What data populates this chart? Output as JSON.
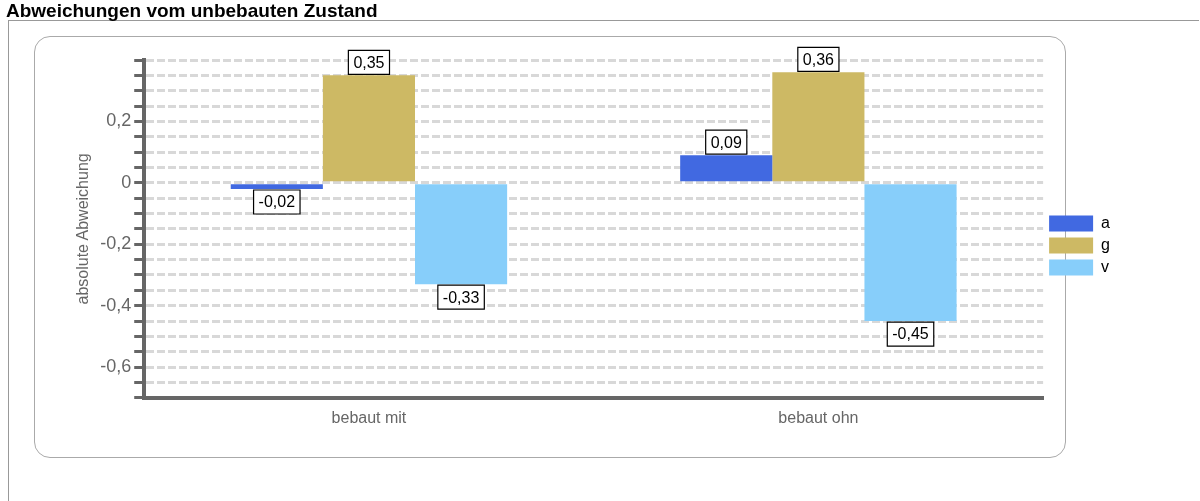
{
  "chart_data": {
    "type": "bar",
    "title": "Abweichungen vom unbebauten Zustand",
    "ylabel": "absolute Abweichung",
    "categories": [
      "bebaut mit",
      "bebaut ohn"
    ],
    "series": [
      {
        "name": "a",
        "color": "#4169e1",
        "values": [
          -0.02,
          0.09
        ],
        "value_labels": [
          "-0,02",
          "0,09"
        ]
      },
      {
        "name": "g",
        "color": "#cdb964",
        "values": [
          0.35,
          0.36
        ],
        "value_labels": [
          "0,35",
          "0,36"
        ]
      },
      {
        "name": "v",
        "color": "#87cefa",
        "values": [
          -0.33,
          -0.45
        ],
        "value_labels": [
          "-0,33",
          "-0,45"
        ]
      }
    ],
    "ylim": [
      -0.7,
      0.4
    ],
    "yticks": [
      {
        "value": -0.7,
        "label": null
      },
      {
        "value": -0.65,
        "label": null
      },
      {
        "value": -0.6,
        "label": "-0,6"
      },
      {
        "value": -0.55,
        "label": null
      },
      {
        "value": -0.5,
        "label": null
      },
      {
        "value": -0.45,
        "label": null
      },
      {
        "value": -0.4,
        "label": "-0,4"
      },
      {
        "value": -0.35,
        "label": null
      },
      {
        "value": -0.3,
        "label": null
      },
      {
        "value": -0.25,
        "label": null
      },
      {
        "value": -0.2,
        "label": "-0,2"
      },
      {
        "value": -0.15,
        "label": null
      },
      {
        "value": -0.1,
        "label": null
      },
      {
        "value": -0.05,
        "label": null
      },
      {
        "value": 0,
        "label": "0"
      },
      {
        "value": 0.05,
        "label": null
      },
      {
        "value": 0.1,
        "label": null
      },
      {
        "value": 0.15,
        "label": null
      },
      {
        "value": 0.2,
        "label": "0,2"
      },
      {
        "value": 0.25,
        "label": null
      },
      {
        "value": 0.3,
        "label": null
      },
      {
        "value": 0.35,
        "label": null
      },
      {
        "value": 0.4,
        "label": null
      }
    ],
    "grid": true,
    "legend": "right"
  }
}
